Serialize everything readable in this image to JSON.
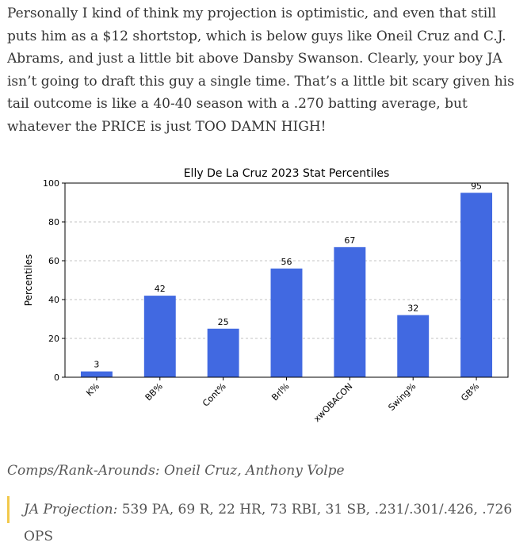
{
  "article": {
    "intro": "Personally I kind of think my projection is optimistic, and even that still puts him as a $12 shortstop, which is below guys like Oneil Cruz and C.J. Abrams, and just a little bit above Dansby Swanson. Clearly, your boy JA isn’t going to draft this guy a single time. That’s a little bit scary given his tail outcome is like a 40-40 season with a .270 batting average, but whatever the PRICE is just TOO DAMN HIGH!",
    "comps": "Comps/Rank-Arounds: Oneil Cruz, Anthony Volpe",
    "projection_label": "JA Projection:",
    "projection_text": " 539 PA, 69 R, 22 HR, 73 RBI, 31 SB, .231/.301/.426, .726 OPS"
  },
  "colors": {
    "bar": "#4169e1",
    "accent": "#f2c94c",
    "grid": "#b0b0b0"
  },
  "chart_data": {
    "type": "bar",
    "title": "Elly De La Cruz 2023 Stat Percentiles",
    "xlabel": "",
    "ylabel": "Percentiles",
    "categories": [
      "K%",
      "BB%",
      "Cont%",
      "Brl%",
      "xwOBACON",
      "Swing%",
      "GB%"
    ],
    "values": [
      3,
      42,
      25,
      56,
      67,
      32,
      95
    ],
    "ylim": [
      0,
      100
    ],
    "yticks": [
      0,
      20,
      40,
      60,
      80,
      100
    ],
    "grid": true
  }
}
